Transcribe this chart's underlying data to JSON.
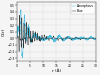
{
  "title": "",
  "xlabel": "r (Å)",
  "ylabel": "G(r)",
  "xlim": [
    0,
    30
  ],
  "ylim": [
    -0.35,
    0.55
  ],
  "legend_labels": [
    "Blue",
    "Amorphous"
  ],
  "line1_color": "#222222",
  "line2_color": "#44bbdd",
  "background_color": "#f5f5f5",
  "grid_color": "#bbbbbb",
  "figsize": [
    1.0,
    0.75
  ],
  "dpi": 100,
  "yticks": [
    -0.3,
    -0.2,
    -0.1,
    0.0,
    0.1,
    0.2,
    0.3,
    0.4,
    0.5
  ],
  "xticks": [
    0,
    5,
    10,
    15,
    20,
    25,
    30
  ]
}
